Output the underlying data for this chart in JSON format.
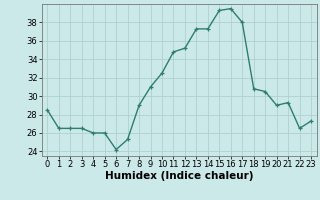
{
  "x": [
    0,
    1,
    2,
    3,
    4,
    5,
    6,
    7,
    8,
    9,
    10,
    11,
    12,
    13,
    14,
    15,
    16,
    17,
    18,
    19,
    20,
    21,
    22,
    23
  ],
  "y": [
    28.5,
    26.5,
    26.5,
    26.5,
    26.0,
    26.0,
    24.2,
    25.3,
    29.0,
    31.0,
    32.5,
    34.8,
    35.2,
    37.3,
    37.3,
    39.3,
    39.5,
    38.0,
    30.8,
    30.5,
    29.0,
    29.3,
    26.5,
    27.3
  ],
  "line_color": "#2e7d6e",
  "marker": "+",
  "marker_size": 3,
  "bg_color": "#cce9e9",
  "grid_color": "#b0cfcf",
  "xlabel": "Humidex (Indice chaleur)",
  "ylim": [
    23.5,
    40.0
  ],
  "xlim": [
    -0.5,
    23.5
  ],
  "yticks": [
    24,
    26,
    28,
    30,
    32,
    34,
    36,
    38
  ],
  "xticks": [
    0,
    1,
    2,
    3,
    4,
    5,
    6,
    7,
    8,
    9,
    10,
    11,
    12,
    13,
    14,
    15,
    16,
    17,
    18,
    19,
    20,
    21,
    22,
    23
  ],
  "xlabel_fontsize": 7.5,
  "tick_fontsize": 6.0,
  "line_width": 1.0
}
